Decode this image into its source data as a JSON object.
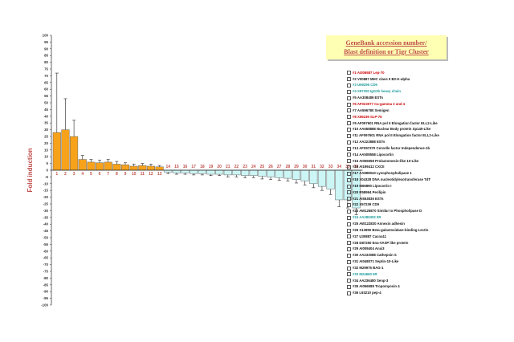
{
  "chart_data": {
    "type": "bar",
    "ylabel": "Fold induction",
    "ylim": [
      -100,
      100
    ],
    "ytick_step": 5,
    "legend_title_line1": "GeneBank accession number/",
    "legend_title_line2": "Blast definition or Tigr Cluster",
    "colors": {
      "up": "#f7a21b",
      "down": "#ccf5f5",
      "bar_edge": "#666666",
      "legend_red": "#cc0000",
      "legend_teal": "#1a9a9a",
      "legend_black": "#111111"
    },
    "categories": [
      "1",
      "2",
      "3",
      "4",
      "5",
      "6",
      "7",
      "8",
      "9",
      "10",
      "11",
      "12",
      "13",
      "14",
      "15",
      "16",
      "17",
      "18",
      "19",
      "20",
      "21",
      "22",
      "23",
      "24",
      "25",
      "26",
      "27",
      "28",
      "29",
      "30",
      "31",
      "32",
      "33",
      "34",
      "35",
      "36"
    ],
    "values": [
      28,
      30,
      25,
      8,
      6,
      5.5,
      6,
      4.5,
      4,
      3,
      3.5,
      3,
      2.5,
      -1.5,
      -2,
      -2,
      -2.5,
      -2.5,
      -3,
      -3,
      -3.5,
      -3.5,
      -4,
      -4,
      -4.5,
      -5,
      -5.5,
      -6,
      -7,
      -8,
      -10,
      -12,
      -14,
      -22,
      -22,
      -28
    ],
    "errors": [
      44,
      23,
      12,
      3,
      2,
      2,
      2,
      2,
      1.5,
      1.5,
      1.5,
      1.5,
      1,
      1,
      1,
      1,
      1,
      1,
      1,
      1,
      1.5,
      1.5,
      1.5,
      1.5,
      2,
      2,
      2,
      2,
      2.5,
      3,
      3,
      3,
      4,
      5,
      6,
      5
    ],
    "legend": [
      {
        "text": "#1 AI306587 Lep-70",
        "color": "red"
      },
      {
        "text": "#2 V00887 MHC class II B2-K-alpha",
        "color": "black"
      },
      {
        "text": "#3 U69296 CD9",
        "color": "teal"
      },
      {
        "text": "#4 X97200 IgG2b heavy chain",
        "color": "teal"
      },
      {
        "text": "#5 AA308489 ESTs",
        "color": "black"
      },
      {
        "text": "#6 AF023077 Ca-gamma 2 and 4",
        "color": "red"
      },
      {
        "text": "#7 AA596780 Semigen",
        "color": "black"
      },
      {
        "text": "#8 X59239 SLP-76",
        "color": "red"
      },
      {
        "text": "#9 AF097601 RNA pol II Elongation factor ELL2-Like",
        "color": "black"
      },
      {
        "text": "#10 AA658888 Nuclear Body protein Sp140-Like",
        "color": "black"
      },
      {
        "text": "#11 AF097601 RNA pol II Elongation factor ELL2-Like",
        "color": "black"
      },
      {
        "text": "#12 AA223888 ESTs",
        "color": "black"
      },
      {
        "text": "#13 AF097370 Cervolle factor Independence-1b",
        "color": "black"
      },
      {
        "text": "#14 AA508558 Lipocortin",
        "color": "black"
      },
      {
        "text": "#15 AI055558 Prolactomesin-like 10-Like",
        "color": "black"
      },
      {
        "text": "#16 AI199412 CXCII",
        "color": "black"
      },
      {
        "text": "#17 AA898043 Lysophospholipase 1",
        "color": "black"
      },
      {
        "text": "#18 X04328 DNA nucleotidylexotransferase TdT",
        "color": "black"
      },
      {
        "text": "#19 M66890 Lipocortin I",
        "color": "black"
      },
      {
        "text": "#20 R58994 Perilipin",
        "color": "black"
      },
      {
        "text": "#21 AI553836 ESTs",
        "color": "black"
      },
      {
        "text": "#22 X57239 CD9",
        "color": "black"
      },
      {
        "text": "#23 AW125870 Similar to Phospholipase D",
        "color": "black"
      },
      {
        "text": "#24 AA286302 IIR",
        "color": "teal"
      },
      {
        "text": "#25 AW122830 Annexin adhesin",
        "color": "black"
      },
      {
        "text": "#26 X13990 Beta-galactosidase-binding Lectin",
        "color": "black"
      },
      {
        "text": "#27 U30887 Cacna11",
        "color": "black"
      },
      {
        "text": "#28 D87250 Ena-VASP like protein",
        "color": "black"
      },
      {
        "text": "#29 AI009404 Anxi3",
        "color": "black"
      },
      {
        "text": "#30 AA233088 Cathepsin S",
        "color": "black"
      },
      {
        "text": "#31 AI048071 Septin-10-Like",
        "color": "black"
      },
      {
        "text": "#32 M29975 BAG-1",
        "color": "black"
      },
      {
        "text": "#33 M24660 IIR",
        "color": "teal"
      },
      {
        "text": "#34 AA236480 Senp-3",
        "color": "black"
      },
      {
        "text": "#35 AI056588 Tropomyosin 4",
        "color": "black"
      },
      {
        "text": "#36 L93210 pep-4",
        "color": "black"
      }
    ]
  }
}
